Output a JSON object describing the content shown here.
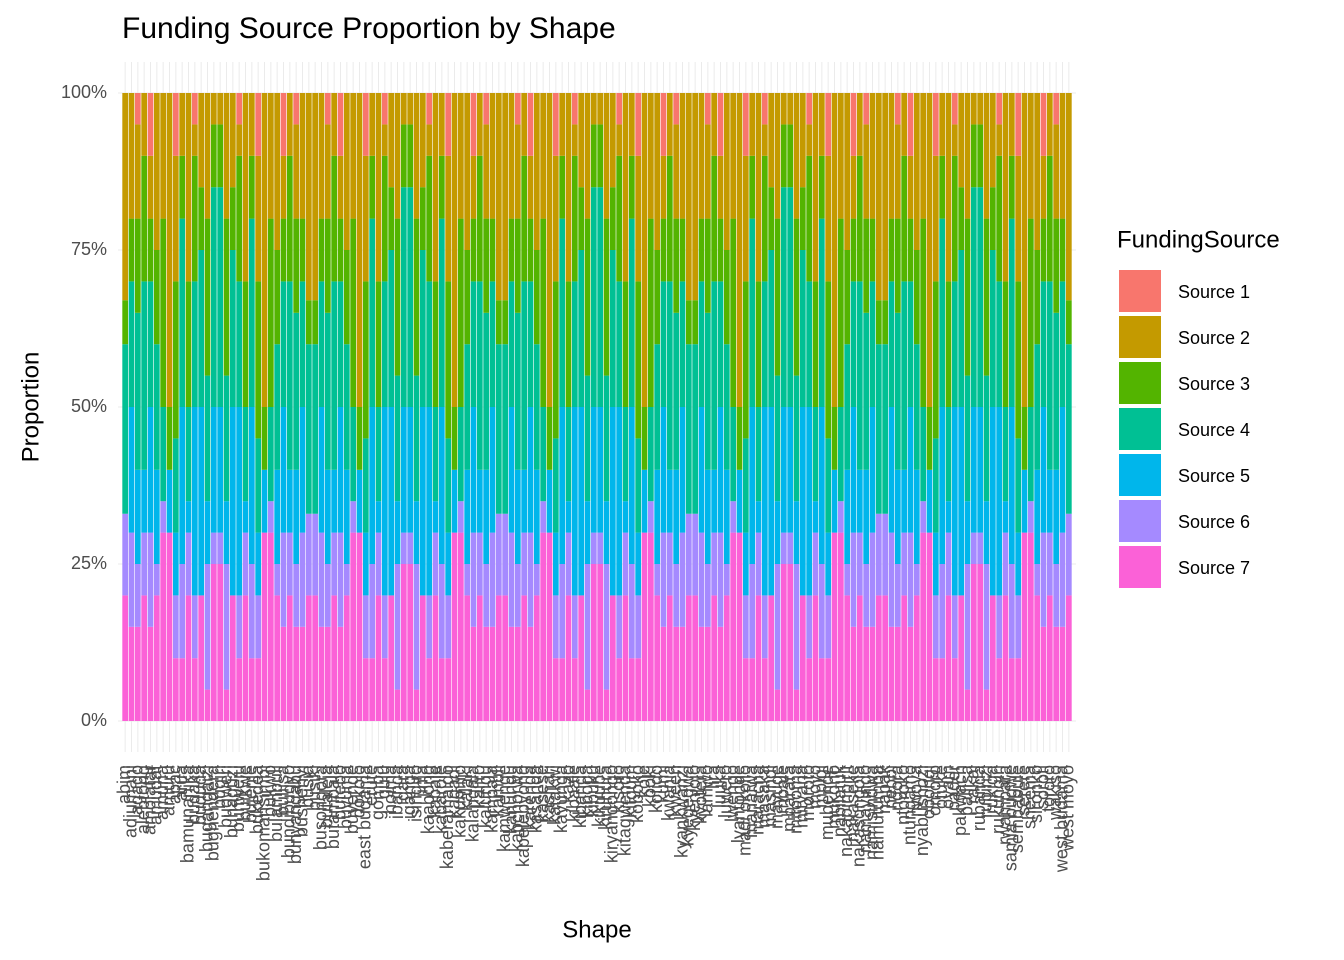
{
  "chart_data": {
    "type": "stacked_bar",
    "title": "Funding Source Proportion by Shape",
    "x_label": "Shape",
    "y_label": "Proportion",
    "legend_title": "FundingSource",
    "legend_position": "right",
    "grid": true,
    "categories": [
      "abim",
      "adjumani",
      "agago",
      "alebtong",
      "amolatar",
      "amudat",
      "amuria",
      "amuru",
      "apac",
      "arua",
      "bamunanika",
      "budaka",
      "bududa",
      "bugangaizi",
      "bughendera",
      "bugiri",
      "bugweri",
      "buhaguzi",
      "buhweju",
      "buikwe",
      "bujenje",
      "bukedea",
      "bukomansimbi",
      "bukwo",
      "bulambuli",
      "buliisa",
      "bundibugyo",
      "bunyangabu",
      "bushenyi",
      "busia",
      "busiki",
      "busongora",
      "butaleja",
      "butambala",
      "butebo",
      "buvuma",
      "buyende",
      "dokolo",
      "east budama",
      "erute",
      "gomba",
      "gulu",
      "hoima",
      "ibanda",
      "igara",
      "iganga",
      "isingiro",
      "jinja",
      "kaabong",
      "kabale",
      "kabarole",
      "kaberamaido",
      "kagadi",
      "kakumiro",
      "kalaki",
      "kalangala",
      "kaliro",
      "kalungu",
      "kampala",
      "kamuli",
      "kamwenge",
      "kanungu",
      "kapchorwa",
      "kapelebyong",
      "karenga",
      "kasanda",
      "kasese",
      "kashari",
      "katakwi",
      "kayunga",
      "kazo",
      "kibaale",
      "kibanda",
      "kiboga",
      "kibuku",
      "kikuube",
      "kiruhura",
      "kiryandongo",
      "kisoro",
      "kitagwenda",
      "kitgum",
      "koboko",
      "kole",
      "kooki",
      "kotido",
      "kumi",
      "kwania",
      "kween",
      "kyankwanzi",
      "kyegegwa",
      "kyenjojo",
      "kyotera",
      "lamwo",
      "lira",
      "luuka",
      "luwero",
      "lwengo",
      "lyantonde",
      "madi okollo",
      "manafwa",
      "maracha",
      "masaka",
      "masindi",
      "mayuge",
      "mbale",
      "mbarara",
      "mitooma",
      "mityana",
      "moroto",
      "moyo",
      "mpigi",
      "mubende",
      "mukono",
      "nabilatuk",
      "nakapiripirit",
      "nakaseke",
      "nakasongola",
      "namayingo",
      "namisindwa",
      "namutumba",
      "napak",
      "nebbi",
      "ngora",
      "ntoroko",
      "ntungamo",
      "nwoya",
      "nyabushozi",
      "obongi",
      "omoro",
      "otuke",
      "oyam",
      "pader",
      "pakwach",
      "pallisa",
      "rakai",
      "rubanda",
      "rubirizi",
      "rukiga",
      "rukungiri",
      "rwampara",
      "samia bugwe",
      "sembabule",
      "serere",
      "sheema",
      "sironko",
      "soroti",
      "tororo",
      "wakiso",
      "west budama",
      "west moyo"
    ],
    "ylim": [
      0,
      100
    ],
    "yticks": [
      {
        "value": 0,
        "label": "0%"
      },
      {
        "value": 25,
        "label": "25%"
      },
      {
        "value": 50,
        "label": "50%"
      },
      {
        "value": 75,
        "label": "75%"
      },
      {
        "value": 100,
        "label": "100%"
      }
    ],
    "series": [
      {
        "name": "Source 1",
        "color": "#F8766D",
        "values": [
          0,
          0,
          5,
          0,
          10,
          0,
          0,
          0,
          10,
          0,
          0,
          5,
          0,
          0,
          0,
          0,
          0,
          0,
          5,
          0,
          0,
          10,
          0,
          0,
          0,
          10,
          0,
          5,
          0,
          0,
          0,
          0,
          5,
          0,
          10,
          0,
          0,
          0,
          10,
          0,
          0,
          5,
          0,
          0,
          0,
          0,
          0,
          0,
          5,
          0,
          0,
          10,
          0,
          0,
          0,
          10,
          0,
          5,
          0,
          0,
          0,
          0,
          5,
          0,
          10,
          0,
          0,
          0,
          10,
          0,
          0,
          5,
          0,
          0,
          0,
          0,
          0,
          0,
          5,
          0,
          0,
          10,
          0,
          0,
          0,
          10,
          0,
          5,
          0,
          0,
          0,
          0,
          5,
          0,
          10,
          0,
          0,
          0,
          10,
          0,
          0,
          5,
          0,
          0,
          0,
          0,
          0,
          0,
          5,
          0,
          0,
          10,
          0,
          0,
          0,
          10,
          0,
          5,
          0,
          0,
          0,
          0,
          5,
          0,
          10,
          0,
          0,
          0,
          10,
          0,
          0,
          5,
          0,
          0,
          0,
          0,
          0,
          0,
          5,
          0,
          0,
          10,
          0,
          0,
          0,
          10,
          0,
          5,
          0,
          0
        ]
      },
      {
        "name": "Source 2",
        "color": "#C49A00",
        "values": [
          33,
          20,
          15,
          10,
          10,
          25,
          20,
          50,
          20,
          10,
          30,
          5,
          15,
          20,
          5,
          5,
          20,
          15,
          5,
          30,
          10,
          20,
          50,
          20,
          25,
          10,
          10,
          15,
          20,
          33,
          33,
          20,
          15,
          10,
          10,
          25,
          20,
          50,
          20,
          10,
          30,
          5,
          15,
          20,
          5,
          5,
          20,
          15,
          5,
          30,
          10,
          20,
          50,
          20,
          25,
          10,
          10,
          15,
          20,
          33,
          33,
          20,
          15,
          10,
          10,
          25,
          20,
          50,
          20,
          10,
          30,
          5,
          15,
          20,
          5,
          5,
          20,
          15,
          5,
          30,
          10,
          20,
          50,
          20,
          25,
          10,
          10,
          15,
          20,
          33,
          33,
          20,
          15,
          10,
          10,
          25,
          20,
          50,
          20,
          10,
          30,
          5,
          15,
          20,
          5,
          5,
          20,
          15,
          5,
          30,
          10,
          20,
          50,
          20,
          25,
          10,
          10,
          15,
          20,
          33,
          33,
          20,
          15,
          10,
          10,
          25,
          20,
          50,
          20,
          10,
          30,
          5,
          15,
          20,
          5,
          5,
          20,
          15,
          5,
          30,
          10,
          20,
          50,
          20,
          25,
          10,
          10,
          15,
          20,
          33
        ]
      },
      {
        "name": "Source 3",
        "color": "#53B400",
        "values": [
          7,
          10,
          15,
          20,
          10,
          15,
          30,
          10,
          25,
          10,
          20,
          20,
          10,
          25,
          10,
          10,
          25,
          10,
          20,
          20,
          10,
          25,
          10,
          30,
          15,
          10,
          20,
          15,
          10,
          7,
          7,
          10,
          15,
          20,
          10,
          15,
          30,
          10,
          25,
          10,
          20,
          20,
          10,
          25,
          10,
          10,
          25,
          10,
          20,
          20,
          10,
          25,
          10,
          30,
          15,
          10,
          20,
          15,
          10,
          7,
          7,
          10,
          15,
          20,
          10,
          15,
          30,
          10,
          25,
          10,
          20,
          20,
          10,
          25,
          10,
          10,
          25,
          10,
          20,
          20,
          10,
          25,
          10,
          30,
          15,
          10,
          20,
          15,
          10,
          7,
          7,
          10,
          15,
          20,
          10,
          15,
          30,
          10,
          25,
          10,
          20,
          20,
          10,
          25,
          10,
          10,
          25,
          10,
          20,
          20,
          10,
          25,
          10,
          30,
          15,
          10,
          20,
          15,
          10,
          7,
          7,
          10,
          15,
          20,
          10,
          15,
          30,
          10,
          25,
          10,
          20,
          20,
          10,
          25,
          10,
          10,
          25,
          10,
          20,
          20,
          10,
          25,
          10,
          30,
          15,
          10,
          20,
          15,
          10,
          7
        ]
      },
      {
        "name": "Source 4",
        "color": "#00C094",
        "values": [
          27,
          20,
          25,
          30,
          20,
          20,
          15,
          0,
          15,
          30,
          15,
          20,
          25,
          20,
          35,
          35,
          20,
          25,
          20,
          15,
          30,
          15,
          0,
          15,
          20,
          20,
          30,
          25,
          20,
          27,
          27,
          20,
          25,
          30,
          20,
          20,
          15,
          0,
          15,
          30,
          15,
          20,
          25,
          20,
          35,
          35,
          20,
          25,
          20,
          15,
          30,
          15,
          0,
          15,
          20,
          20,
          30,
          25,
          20,
          27,
          27,
          20,
          25,
          30,
          20,
          20,
          15,
          0,
          15,
          30,
          15,
          20,
          25,
          20,
          35,
          35,
          20,
          25,
          20,
          15,
          30,
          15,
          0,
          15,
          20,
          20,
          30,
          25,
          20,
          27,
          27,
          20,
          25,
          30,
          20,
          20,
          15,
          0,
          15,
          30,
          15,
          20,
          25,
          20,
          35,
          35,
          20,
          25,
          20,
          15,
          30,
          15,
          0,
          15,
          20,
          20,
          30,
          25,
          20,
          27,
          27,
          20,
          25,
          30,
          20,
          20,
          15,
          0,
          15,
          30,
          15,
          20,
          25,
          20,
          35,
          35,
          20,
          25,
          20,
          15,
          30,
          15,
          0,
          15,
          20,
          20,
          30,
          25,
          20,
          27
        ]
      },
      {
        "name": "Source 5",
        "color": "#00B6EB",
        "values": [
          0,
          20,
          15,
          10,
          20,
          15,
          0,
          10,
          10,
          25,
          5,
          30,
          30,
          10,
          20,
          20,
          10,
          30,
          30,
          5,
          25,
          10,
          10,
          0,
          15,
          20,
          10,
          15,
          20,
          0,
          0,
          20,
          15,
          10,
          20,
          15,
          0,
          10,
          10,
          25,
          5,
          30,
          30,
          10,
          20,
          20,
          10,
          30,
          30,
          5,
          25,
          10,
          10,
          0,
          15,
          20,
          10,
          15,
          20,
          0,
          0,
          20,
          15,
          10,
          20,
          15,
          0,
          10,
          10,
          25,
          5,
          30,
          30,
          10,
          20,
          20,
          10,
          30,
          30,
          5,
          25,
          10,
          10,
          0,
          15,
          20,
          10,
          15,
          20,
          0,
          0,
          20,
          15,
          10,
          20,
          15,
          0,
          10,
          10,
          25,
          5,
          30,
          30,
          10,
          20,
          20,
          10,
          30,
          30,
          5,
          25,
          10,
          10,
          0,
          15,
          20,
          10,
          15,
          20,
          0,
          0,
          20,
          15,
          10,
          20,
          15,
          0,
          10,
          10,
          25,
          5,
          30,
          30,
          10,
          20,
          20,
          10,
          30,
          30,
          5,
          25,
          10,
          10,
          0,
          15,
          20,
          10,
          15,
          20,
          0
        ]
      },
      {
        "name": "Source 6",
        "color": "#A58AFF",
        "values": [
          13,
          15,
          10,
          10,
          15,
          5,
          5,
          0,
          10,
          15,
          10,
          10,
          0,
          20,
          5,
          5,
          20,
          0,
          10,
          10,
          15,
          10,
          0,
          5,
          5,
          15,
          10,
          10,
          15,
          13,
          13,
          15,
          10,
          10,
          15,
          5,
          5,
          0,
          10,
          15,
          10,
          10,
          0,
          20,
          5,
          5,
          20,
          0,
          10,
          10,
          15,
          10,
          0,
          5,
          5,
          15,
          10,
          10,
          15,
          13,
          13,
          15,
          10,
          10,
          15,
          5,
          5,
          0,
          10,
          15,
          10,
          10,
          0,
          20,
          5,
          5,
          20,
          0,
          10,
          10,
          15,
          10,
          0,
          5,
          5,
          15,
          10,
          10,
          15,
          13,
          13,
          15,
          10,
          10,
          15,
          5,
          5,
          0,
          10,
          15,
          10,
          10,
          0,
          20,
          5,
          5,
          20,
          0,
          10,
          10,
          15,
          10,
          0,
          5,
          5,
          15,
          10,
          10,
          15,
          13,
          13,
          15,
          10,
          10,
          15,
          5,
          5,
          0,
          10,
          15,
          10,
          10,
          0,
          20,
          5,
          5,
          20,
          0,
          10,
          10,
          15,
          10,
          0,
          5,
          5,
          15,
          10,
          10,
          15,
          13
        ]
      },
      {
        "name": "Source 7",
        "color": "#FB61D7",
        "values": [
          20,
          15,
          15,
          20,
          15,
          20,
          30,
          30,
          10,
          10,
          20,
          10,
          20,
          5,
          25,
          25,
          5,
          20,
          10,
          20,
          10,
          10,
          30,
          30,
          20,
          15,
          20,
          15,
          15,
          20,
          20,
          15,
          15,
          20,
          15,
          20,
          30,
          30,
          10,
          10,
          20,
          10,
          20,
          5,
          25,
          25,
          5,
          20,
          10,
          20,
          10,
          10,
          30,
          30,
          20,
          15,
          20,
          15,
          15,
          20,
          20,
          15,
          15,
          20,
          15,
          20,
          30,
          30,
          10,
          10,
          20,
          10,
          20,
          5,
          25,
          25,
          5,
          20,
          10,
          20,
          10,
          10,
          30,
          30,
          20,
          15,
          20,
          15,
          15,
          20,
          20,
          15,
          15,
          20,
          15,
          20,
          30,
          30,
          10,
          10,
          20,
          10,
          20,
          5,
          25,
          25,
          5,
          20,
          10,
          20,
          10,
          10,
          30,
          30,
          20,
          15,
          20,
          15,
          15,
          20,
          20,
          15,
          15,
          20,
          15,
          20,
          30,
          30,
          10,
          10,
          20,
          10,
          20,
          5,
          25,
          25,
          5,
          20,
          10,
          20,
          10,
          10,
          30,
          30,
          20,
          15,
          20,
          15,
          15,
          20
        ]
      }
    ]
  }
}
